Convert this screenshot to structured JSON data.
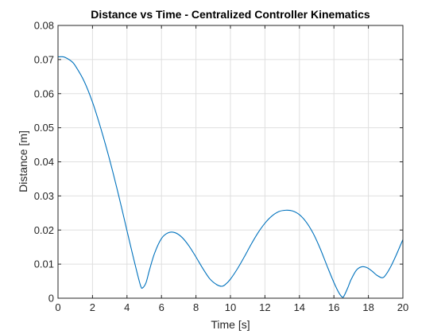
{
  "chart_data": {
    "type": "line",
    "title": "Distance vs Time - Centralized Controller Kinematics",
    "xlabel": "Time [s]",
    "ylabel": "Distance [m]",
    "xlim": [
      0,
      20
    ],
    "ylim": [
      0,
      0.08
    ],
    "xticks": [
      0,
      2,
      4,
      6,
      8,
      10,
      12,
      14,
      16,
      18,
      20
    ],
    "xtick_labels": [
      "0",
      "2",
      "4",
      "6",
      "8",
      "10",
      "12",
      "14",
      "16",
      "18",
      "20"
    ],
    "yticks": [
      0,
      0.01,
      0.02,
      0.03,
      0.04,
      0.05,
      0.06,
      0.07,
      0.08
    ],
    "ytick_labels": [
      "0",
      "0.01",
      "0.02",
      "0.03",
      "0.04",
      "0.05",
      "0.06",
      "0.07",
      "0.08"
    ],
    "grid": true,
    "series": [
      {
        "color": "#0072BD",
        "x": [
          0,
          0.3,
          0.5,
          0.8,
          1.0,
          1.5,
          2.0,
          2.5,
          3.0,
          3.5,
          4.0,
          4.3,
          4.6,
          4.8,
          4.9,
          5.1,
          5.3,
          5.6,
          6.0,
          6.4,
          6.8,
          7.2,
          7.6,
          8.0,
          8.4,
          8.8,
          9.2,
          9.5,
          9.7,
          10.0,
          10.4,
          10.8,
          11.2,
          11.6,
          12.0,
          12.4,
          12.8,
          13.2,
          13.6,
          14.0,
          14.4,
          14.8,
          15.2,
          15.6,
          16.0,
          16.3,
          16.5,
          16.6,
          16.8,
          17.0,
          17.3,
          17.6,
          17.9,
          18.2,
          18.5,
          18.8,
          19.0,
          19.3,
          19.6,
          20.0
        ],
        "values": [
          0.0708,
          0.0708,
          0.0704,
          0.0694,
          0.0682,
          0.0638,
          0.0575,
          0.0495,
          0.0405,
          0.0305,
          0.0198,
          0.0134,
          0.0072,
          0.0035,
          0.003,
          0.0045,
          0.0082,
          0.0132,
          0.0175,
          0.0192,
          0.0192,
          0.0178,
          0.0153,
          0.0121,
          0.0087,
          0.0057,
          0.004,
          0.0035,
          0.004,
          0.0056,
          0.0086,
          0.0121,
          0.0158,
          0.0192,
          0.022,
          0.0241,
          0.0254,
          0.0258,
          0.0256,
          0.0245,
          0.0223,
          0.019,
          0.0146,
          0.0095,
          0.0046,
          0.0015,
          0.0003,
          0.0008,
          0.003,
          0.0055,
          0.0082,
          0.0092,
          0.009,
          0.008,
          0.0067,
          0.006,
          0.0068,
          0.0093,
          0.0125,
          0.0172
        ]
      }
    ]
  }
}
